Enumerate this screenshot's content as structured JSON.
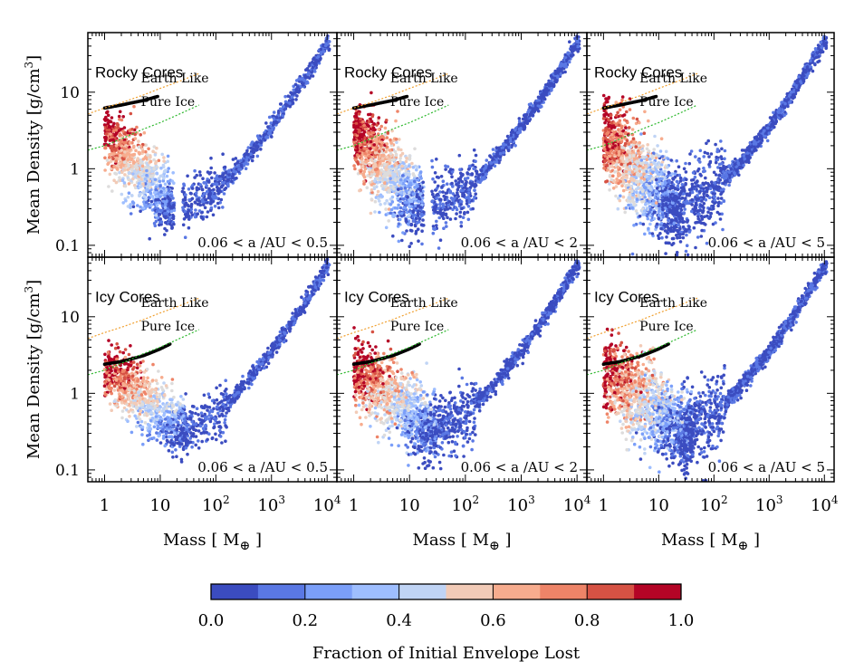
{
  "chart_data": {
    "type": "scatter",
    "layout": {
      "rows": 2,
      "cols": 3
    },
    "x_axis": {
      "label": "Mass [ M",
      "label_symbol": "⊕",
      "label_end": " ]",
      "scale": "log",
      "range": [
        0.5,
        15000
      ],
      "ticks": [
        {
          "value": 1,
          "base": "1",
          "exp": ""
        },
        {
          "value": 10,
          "base": "10",
          "exp": ""
        },
        {
          "value": 100,
          "base": "10",
          "exp": "2"
        },
        {
          "value": 1000,
          "base": "10",
          "exp": "3"
        },
        {
          "value": 10000,
          "base": "10",
          "exp": "4"
        }
      ]
    },
    "y_axis": {
      "label": "Mean Density [g/cm",
      "label_exp": "3",
      "label_end": "]",
      "scale": "log",
      "range": [
        0.07,
        60
      ],
      "ticks": [
        {
          "value": 0.1,
          "label": "0.1"
        },
        {
          "value": 1,
          "label": "1"
        },
        {
          "value": 10,
          "label": "10"
        }
      ]
    },
    "reference_curves": [
      {
        "name": "Earth Like",
        "color": "#f0a030",
        "x": [
          0.5,
          1,
          2,
          5,
          10,
          20,
          50
        ],
        "y": [
          5.2,
          6.2,
          7.3,
          9.2,
          11.2,
          13.5,
          17.5
        ]
      },
      {
        "name": "Pure Ice",
        "color": "#2eb82e",
        "x": [
          0.5,
          1,
          2,
          5,
          10,
          20,
          50
        ],
        "y": [
          1.75,
          2.0,
          2.45,
          3.3,
          4.0,
          5.0,
          6.8
        ]
      }
    ],
    "panels": [
      {
        "core": "Rocky Cores",
        "range_label": "0.06 < a /AU < 0.5",
        "a_max": 0.5
      },
      {
        "core": "Rocky Cores",
        "range_label": "0.06 < a /AU < 2",
        "a_max": 2
      },
      {
        "core": "Rocky Cores",
        "range_label": "0.06 < a /AU < 5",
        "a_max": 5
      },
      {
        "core": "Icy Cores",
        "range_label": "0.06 < a /AU < 0.5",
        "a_max": 0.5
      },
      {
        "core": "Icy Cores",
        "range_label": "0.06 < a /AU < 2",
        "a_max": 2
      },
      {
        "core": "Icy Cores",
        "range_label": "0.06 < a /AU < 5",
        "a_max": 5
      }
    ],
    "bare_core_sequence": {
      "color": "#000000",
      "rocky": {
        "x": [
          1,
          2,
          5,
          9
        ],
        "y": [
          6.2,
          6.8,
          7.8,
          8.8
        ]
      },
      "icy": {
        "x": [
          1,
          2,
          5,
          10,
          15
        ],
        "y": [
          2.4,
          2.6,
          3.1,
          3.8,
          4.4
        ]
      }
    },
    "envelope_branch": {
      "description": "planets with retained gas envelopes",
      "x": [
        30,
        100,
        300,
        1000,
        3000,
        10000
      ],
      "y": [
        0.35,
        0.5,
        1.2,
        3.5,
        11,
        45
      ]
    },
    "colorbar": {
      "label": "Fraction of Initial Envelope Lost",
      "range": [
        0.0,
        1.0
      ],
      "ticks": [
        "0.0",
        "0.2",
        "0.4",
        "0.6",
        "0.8",
        "1.0"
      ],
      "colors": [
        "#3b4cc0",
        "#5a78e4",
        "#7b9ff9",
        "#9ebeff",
        "#c0d4f5",
        "#dddcdc",
        "#f2cbb7",
        "#f7ac8e",
        "#ee8468",
        "#d65244",
        "#b40426"
      ]
    }
  }
}
